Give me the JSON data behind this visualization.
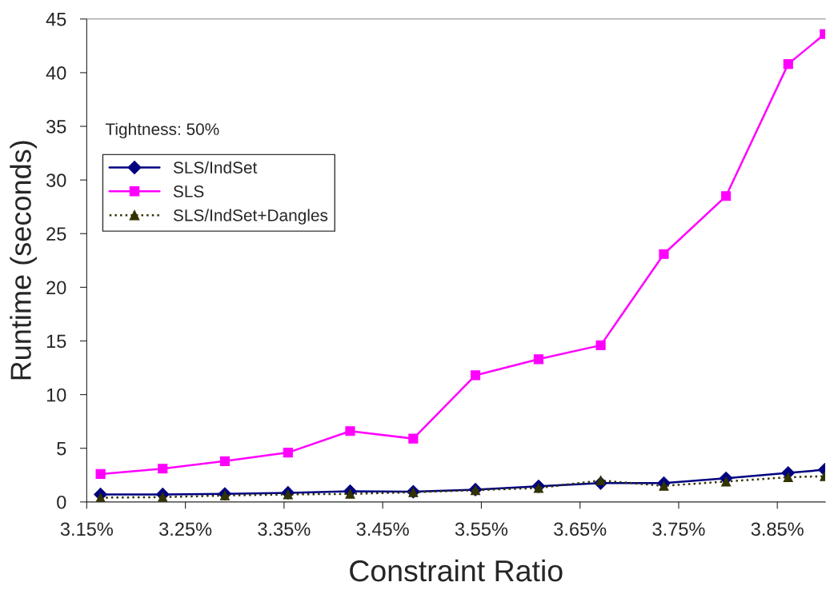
{
  "chart_data": {
    "type": "line",
    "xlabel": "Constraint Ratio",
    "ylabel": "Runtime (seconds)",
    "x": [
      3.164,
      3.227,
      3.29,
      3.354,
      3.417,
      3.481,
      3.544,
      3.608,
      3.671,
      3.735,
      3.798,
      3.861,
      3.898
    ],
    "series": [
      {
        "name": "SLS/IndSet",
        "color": "#000080",
        "marker": "diamond",
        "line_style": "solid",
        "values": [
          0.7,
          0.7,
          0.75,
          0.85,
          1.0,
          0.95,
          1.15,
          1.45,
          1.75,
          1.75,
          2.2,
          2.7,
          3.0
        ]
      },
      {
        "name": "SLS",
        "color": "#ff00ff",
        "marker": "square",
        "line_style": "solid",
        "values": [
          2.6,
          3.1,
          3.8,
          4.6,
          6.6,
          5.9,
          11.8,
          13.3,
          14.6,
          23.1,
          28.5,
          40.8,
          43.6
        ]
      },
      {
        "name": "SLS/IndSet+Dangles",
        "color": "#333300",
        "marker": "triangle",
        "line_style": "dotted",
        "values": [
          0.4,
          0.45,
          0.6,
          0.7,
          0.75,
          0.9,
          1.1,
          1.3,
          2.0,
          1.5,
          1.9,
          2.3,
          2.4
        ]
      }
    ],
    "xlim": [
      3.15,
      3.8985
    ],
    "ylim": [
      0,
      45
    ],
    "xticks": [
      {
        "value": 3.15,
        "label": "3.15%"
      },
      {
        "value": 3.25,
        "label": "3.25%"
      },
      {
        "value": 3.35,
        "label": "3.35%"
      },
      {
        "value": 3.45,
        "label": "3.45%"
      },
      {
        "value": 3.55,
        "label": "3.55%"
      },
      {
        "value": 3.65,
        "label": "3.65%"
      },
      {
        "value": 3.75,
        "label": "3.75%"
      },
      {
        "value": 3.85,
        "label": "3.85%"
      }
    ],
    "yticks": [
      0,
      5,
      10,
      15,
      20,
      25,
      30,
      35,
      40,
      45
    ],
    "annotations": [
      "Tightness: 50%"
    ],
    "grid": false,
    "legend": "left"
  }
}
